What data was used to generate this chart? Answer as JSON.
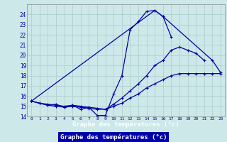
{
  "xlabel": "Graphe des températures (°c)",
  "bg_color": "#cce8e8",
  "grid_color": "#aacccc",
  "line_color": "#0000aa",
  "ylim": [
    14,
    25
  ],
  "yticks": [
    14,
    15,
    16,
    17,
    18,
    19,
    20,
    21,
    22,
    23,
    24
  ],
  "xticks": [
    0,
    1,
    2,
    3,
    4,
    5,
    6,
    7,
    8,
    9,
    10,
    11,
    12,
    13,
    14,
    15,
    16,
    17,
    18,
    19,
    20,
    21,
    22,
    23
  ],
  "line1_x": [
    0,
    1,
    2,
    3,
    4,
    5,
    6,
    7,
    8,
    9,
    10,
    11,
    12,
    13,
    14,
    15,
    16,
    17
  ],
  "line1_y": [
    15.5,
    15.3,
    15.1,
    15.2,
    14.9,
    15.1,
    14.7,
    14.9,
    14.1,
    14.1,
    16.2,
    18.0,
    22.5,
    23.3,
    24.3,
    24.4,
    23.8,
    21.8
  ],
  "line2_x": [
    0,
    1,
    2,
    3,
    4,
    5,
    6,
    7,
    8,
    9,
    10,
    11,
    12,
    13,
    14,
    15,
    16,
    17,
    18,
    19,
    20,
    21,
    22,
    23
  ],
  "line2_y": [
    15.5,
    15.3,
    15.2,
    15.1,
    15.0,
    15.1,
    15.0,
    14.9,
    14.8,
    14.7,
    15.0,
    15.3,
    15.8,
    16.2,
    16.8,
    17.2,
    17.6,
    18.0,
    18.2,
    18.2,
    18.2,
    18.2,
    18.2,
    18.2
  ],
  "line3_x": [
    0,
    1,
    2,
    3,
    4,
    5,
    6,
    7,
    8,
    9,
    10,
    11,
    12,
    13,
    14,
    15,
    16,
    17,
    18,
    19,
    20,
    21
  ],
  "line3_y": [
    15.5,
    15.3,
    15.1,
    15.0,
    14.9,
    15.0,
    14.9,
    14.8,
    14.7,
    14.7,
    15.2,
    15.8,
    16.5,
    17.2,
    18.0,
    19.0,
    19.5,
    20.5,
    20.8,
    20.5,
    20.2,
    19.5
  ],
  "line4_x": [
    0,
    15,
    16,
    22,
    23
  ],
  "line4_y": [
    15.5,
    24.4,
    23.8,
    19.5,
    18.3
  ]
}
